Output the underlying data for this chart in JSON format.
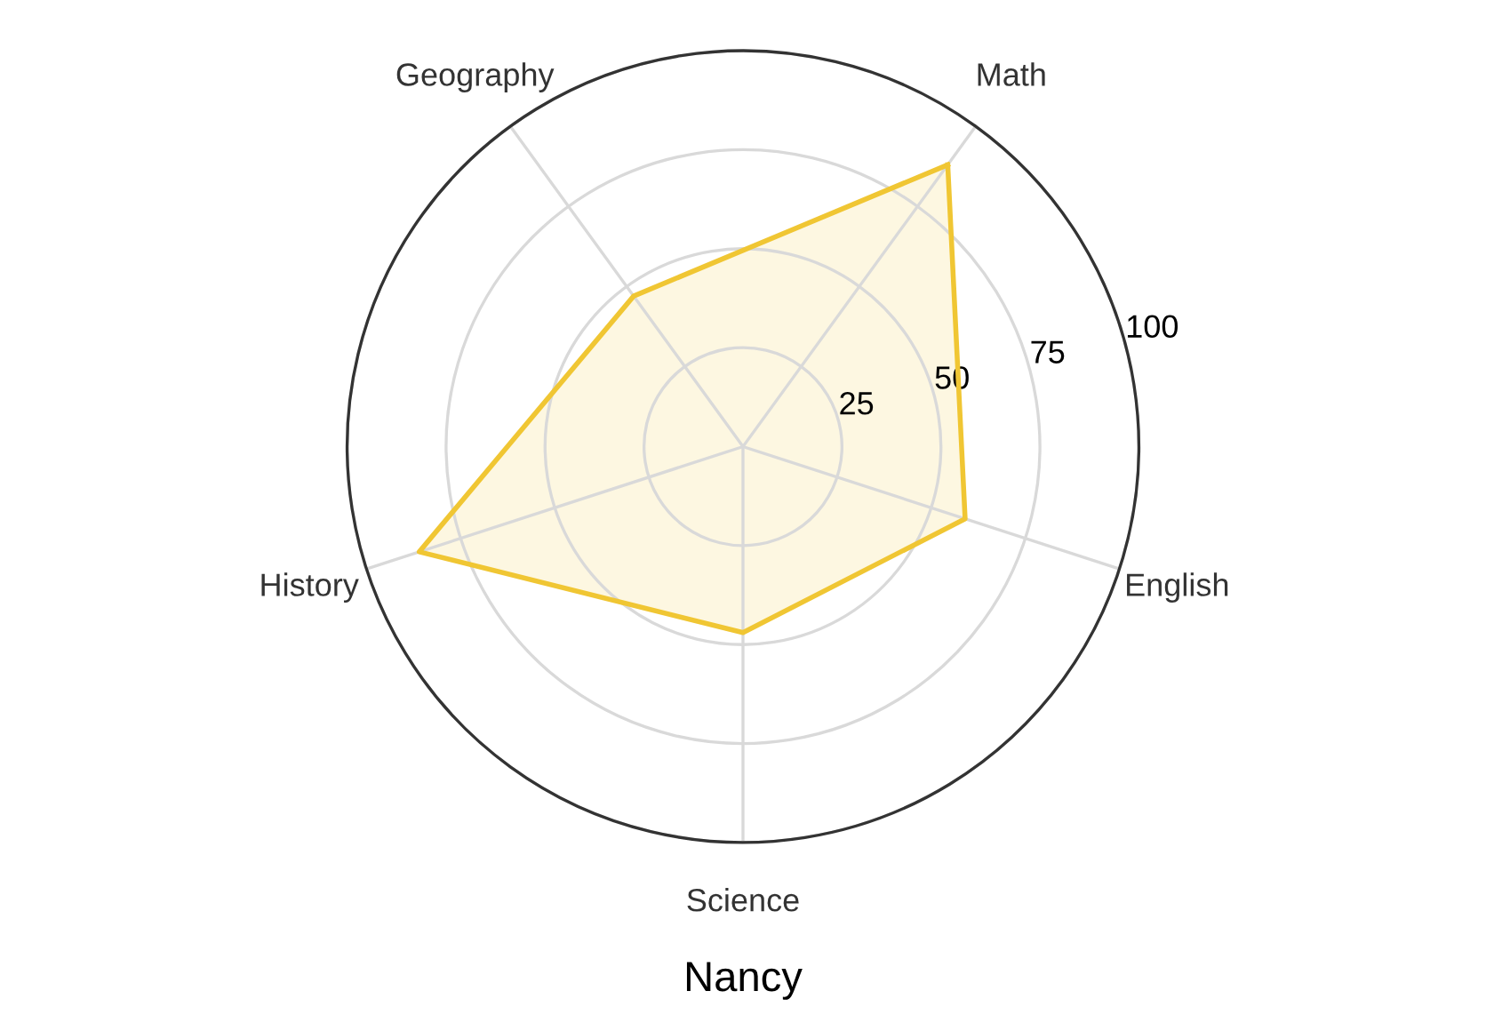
{
  "chart_data": {
    "type": "radar",
    "title": "Nancy",
    "categories": [
      "Math",
      "English",
      "Science",
      "History",
      "Geography"
    ],
    "series": [
      {
        "color": "#f0c633",
        "values": [
          88,
          59,
          47,
          86,
          47
        ]
      }
    ],
    "ylim": [
      0,
      100
    ],
    "yticks": [
      25,
      50,
      75,
      100
    ],
    "grid": true
  }
}
